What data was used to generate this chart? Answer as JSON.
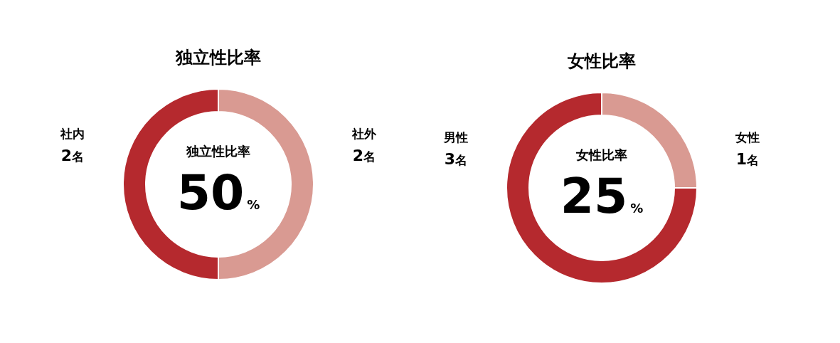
{
  "chart_data": [
    {
      "type": "donut",
      "title": "独立性比率",
      "categories": [
        "社外",
        "社内"
      ],
      "values": [
        2,
        2
      ],
      "colors": [
        "#d99a92",
        "#b5292e"
      ],
      "value_labels": [
        "2名",
        "2名"
      ],
      "annotations": [
        "独立性比率",
        "50%"
      ]
    },
    {
      "type": "donut",
      "title": "女性比率",
      "categories": [
        "女性",
        "男性"
      ],
      "values": [
        1,
        3
      ],
      "colors": [
        "#d99a92",
        "#b5292e"
      ],
      "value_labels": [
        "1名",
        "3名"
      ],
      "annotations": [
        "女性比率",
        "25%"
      ]
    }
  ]
}
